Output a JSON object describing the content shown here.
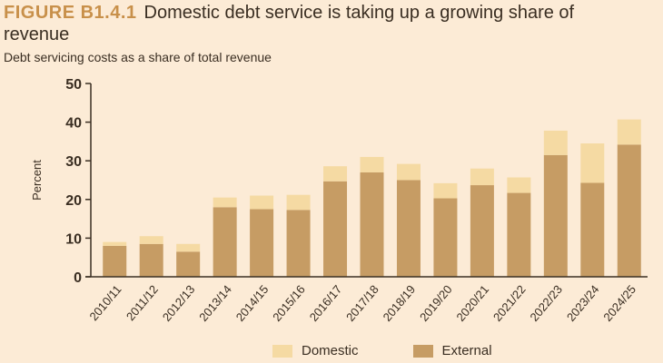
{
  "figure_label": "FIGURE B1.4.1",
  "title": "Domestic debt service is taking up a growing share of revenue",
  "chart_data": {
    "type": "bar",
    "stacked": true,
    "subtitle": "Debt servicing costs as a share of total revenue",
    "ylabel": "Percent",
    "xlabel": "",
    "ylim": [
      0,
      50
    ],
    "yticks": [
      0,
      10,
      20,
      30,
      40,
      50
    ],
    "grid": false,
    "legend_position": "bottom",
    "categories": [
      "2010/11",
      "2011/12",
      "2012/13",
      "2013/14",
      "2014/15",
      "2015/16",
      "2016/17",
      "2017/18",
      "2018/19",
      "2019/20",
      "2020/21",
      "2021/22",
      "2022/23",
      "2023/24",
      "2024/25"
    ],
    "series": [
      {
        "name": "External",
        "color": "#c69c64",
        "values": [
          8.0,
          8.5,
          6.5,
          18.0,
          17.5,
          17.3,
          24.7,
          27.0,
          25.0,
          20.3,
          23.7,
          21.7,
          31.5,
          24.3,
          34.2
        ]
      },
      {
        "name": "Domestic",
        "color": "#f5daa3",
        "values": [
          1.0,
          2.0,
          2.0,
          2.5,
          3.5,
          3.9,
          3.9,
          4.0,
          4.2,
          3.9,
          4.3,
          4.0,
          6.3,
          10.2,
          6.5
        ]
      }
    ]
  }
}
